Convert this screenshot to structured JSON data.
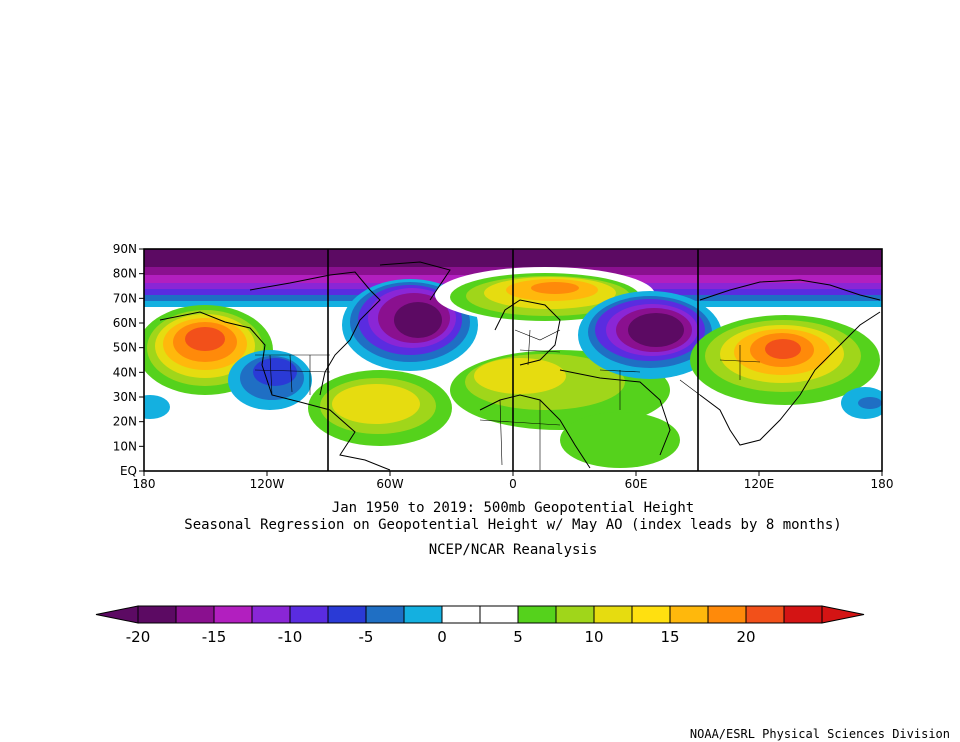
{
  "map": {
    "lat_labels": [
      "90N",
      "80N",
      "70N",
      "60N",
      "50N",
      "40N",
      "30N",
      "20N",
      "10N",
      "EQ"
    ],
    "lon_labels": [
      "180",
      "120W",
      "60W",
      "0",
      "60E",
      "120E",
      "180"
    ],
    "region": "Northern Hemisphere 0N-90N, 180W-180E",
    "shading": "500mb geopotential height regression anomalies",
    "anomaly_centers": [
      {
        "feature": "high",
        "lon": -152,
        "lat": 55,
        "value": 17
      },
      {
        "feature": "high",
        "lon": 125,
        "lat": 49,
        "value": 17
      },
      {
        "feature": "high",
        "lon": 15,
        "lat": 74,
        "value": 13
      },
      {
        "feature": "high",
        "lon": -55,
        "lat": 27,
        "value": 10
      },
      {
        "feature": "high",
        "lon": 15,
        "lat": 38,
        "value": 8
      },
      {
        "feature": "low",
        "lon": -30,
        "lat": 52,
        "value": -18
      },
      {
        "feature": "low",
        "lon": 50,
        "lat": 53,
        "value": -18
      },
      {
        "feature": "low",
        "lon": -120,
        "lat": 40,
        "value": -9
      },
      {
        "feature": "low",
        "lon": 0,
        "lat": 85,
        "value": -20
      }
    ]
  },
  "caption": {
    "line1": "Jan 1950 to 2019: 500mb Geopotential Height",
    "line2": "Seasonal Regression on Geopotential Height  w/ May AO (index leads by 8 months)",
    "line3": "NCEP/NCAR Reanalysis"
  },
  "colorbar": {
    "colors": [
      "#5c0a63",
      "#8a108f",
      "#b21fbf",
      "#8a26d6",
      "#5a2ce0",
      "#2a3ad6",
      "#1f6fc4",
      "#14b0e0",
      "#ffffff",
      "#ffffff",
      "#55d21c",
      "#a0d61a",
      "#e6dc10",
      "#ffe010",
      "#ffb80c",
      "#ff8a0a",
      "#f2501a",
      "#d41414"
    ],
    "ticks": [
      "-20",
      "-15",
      "-10",
      "-5",
      "0",
      "5",
      "10",
      "15",
      "20"
    ]
  },
  "credit": "NOAA/ESRL Physical Sciences Division"
}
